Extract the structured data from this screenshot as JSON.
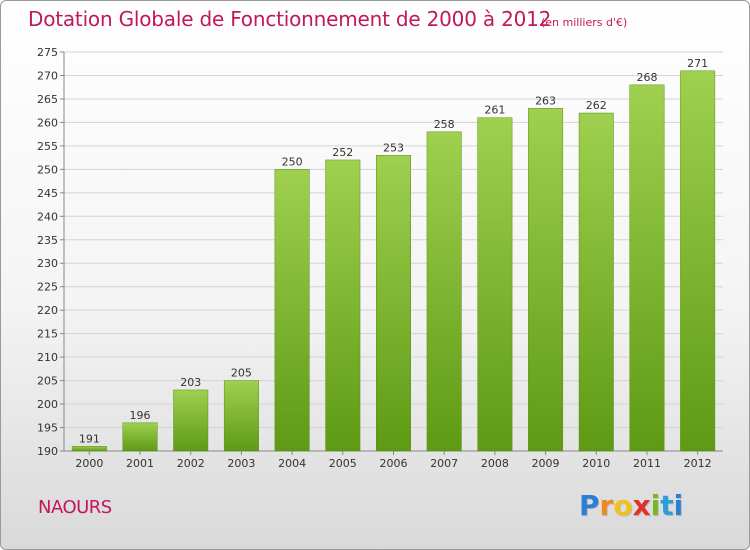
{
  "chart_data": {
    "type": "bar",
    "title": "Dotation Globale de Fonctionnement de 2000 à 2012",
    "subtitle": "(en milliers d'€)",
    "categories": [
      "2000",
      "2001",
      "2002",
      "2003",
      "2004",
      "2005",
      "2006",
      "2007",
      "2008",
      "2009",
      "2010",
      "2011",
      "2012"
    ],
    "values": [
      191,
      196,
      203,
      205,
      250,
      252,
      253,
      258,
      261,
      263,
      262,
      268,
      271
    ],
    "data_labels": [
      "191",
      "196",
      "203",
      "205",
      "250",
      "252",
      "253",
      "258",
      "261",
      "263",
      "262",
      "268",
      "271"
    ],
    "xlabel": "",
    "ylabel": "",
    "ylim": [
      190,
      275
    ],
    "y_ticks": [
      190,
      195,
      200,
      205,
      210,
      215,
      220,
      225,
      230,
      235,
      240,
      245,
      250,
      255,
      260,
      265,
      270,
      275
    ],
    "grid": true,
    "legend": "none",
    "colors": {
      "bar_top": "#9fd04f",
      "bar_bottom": "#5e9a15",
      "title": "#c2185b",
      "grid": "#d4d4d4",
      "axis": "#888888"
    }
  },
  "footer": {
    "commune": "NAOURS",
    "brand": "Proxiti"
  }
}
